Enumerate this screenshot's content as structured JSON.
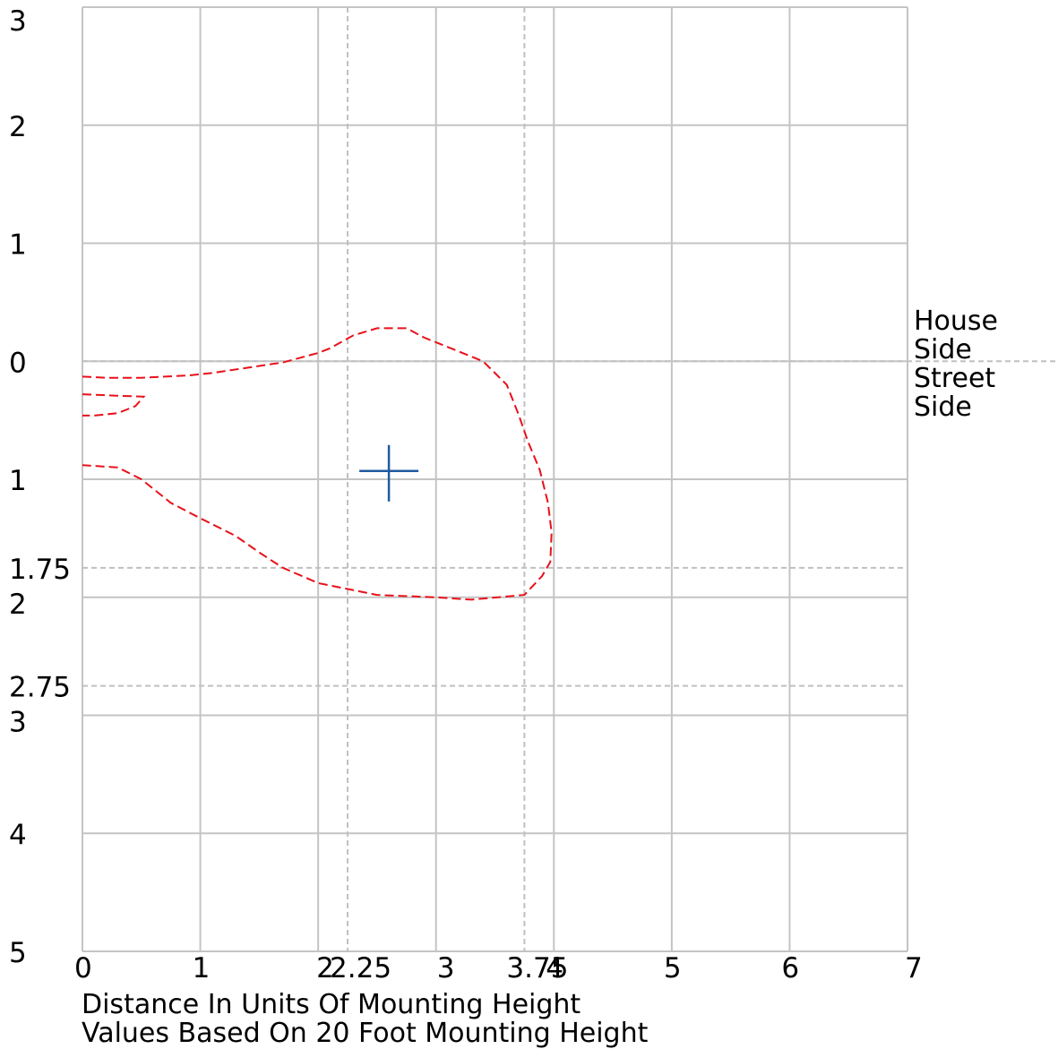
{
  "chart_data": {
    "type": "line",
    "title": "",
    "xlabel": "Distance In Units Of Mounting Height",
    "note": "Values Based On 20 Foot Mounting Height",
    "xlim": [
      0,
      7
    ],
    "ylim": [
      -3,
      5
    ],
    "x_ticks": [
      "0",
      "1",
      "2",
      "2.25",
      "3",
      "3.75",
      "4",
      "5",
      "6",
      "7"
    ],
    "y_ticks": [
      {
        "value": -3,
        "label": "3"
      },
      {
        "value": -2,
        "label": "2"
      },
      {
        "value": -1,
        "label": "1"
      },
      {
        "value": 0,
        "label": "0"
      },
      {
        "value": 1,
        "label": "1"
      },
      {
        "value": 1.75,
        "label": "1.75"
      },
      {
        "value": 2,
        "label": "2"
      },
      {
        "value": 2.75,
        "label": "2.75"
      },
      {
        "value": 3,
        "label": "3"
      },
      {
        "value": 4,
        "label": "4"
      },
      {
        "value": 5,
        "label": "5"
      }
    ],
    "x_grid": [
      0,
      1,
      2,
      3,
      4,
      5,
      6,
      7
    ],
    "y_grid": [
      -3,
      -2,
      -1,
      0,
      1,
      2,
      3,
      4,
      5
    ],
    "dashed_x": [
      2.25,
      3.75
    ],
    "dashed_y": [
      0,
      1.75,
      2.75
    ],
    "grid": true,
    "house_side_label": [
      "House",
      "Side"
    ],
    "street_side_label": [
      "Street",
      "Side"
    ],
    "marker": {
      "x": 2.6,
      "y": 0.93,
      "shape": "cross"
    },
    "series": [
      {
        "color": "#e8101a",
        "style": "dashed",
        "points": [
          [
            0,
            0.13
          ],
          [
            0.2,
            0.14
          ],
          [
            0.5,
            0.14
          ],
          [
            0.9,
            0.12
          ],
          [
            1.1,
            0.1
          ],
          [
            1.5,
            0.04
          ],
          [
            1.7,
            0.01
          ],
          [
            2.0,
            -0.07
          ],
          [
            2.1,
            -0.11
          ],
          [
            2.3,
            -0.22
          ],
          [
            2.5,
            -0.28
          ],
          [
            2.75,
            -0.28
          ],
          [
            2.9,
            -0.2
          ],
          [
            3.1,
            -0.12
          ],
          [
            3.4,
            0.0
          ],
          [
            3.6,
            0.2
          ],
          [
            3.7,
            0.45
          ],
          [
            3.78,
            0.68
          ],
          [
            3.88,
            0.92
          ],
          [
            3.95,
            1.2
          ],
          [
            3.98,
            1.45
          ],
          [
            3.97,
            1.7
          ],
          [
            3.9,
            1.82
          ],
          [
            3.75,
            1.98
          ],
          [
            3.3,
            2.02
          ],
          [
            3.0,
            2.0
          ],
          [
            2.5,
            1.98
          ],
          [
            2.25,
            1.93
          ],
          [
            2.0,
            1.88
          ],
          [
            1.7,
            1.75
          ],
          [
            1.5,
            1.62
          ],
          [
            1.3,
            1.48
          ],
          [
            1.0,
            1.33
          ],
          [
            0.75,
            1.2
          ],
          [
            0.5,
            1.0
          ],
          [
            0.3,
            0.9
          ],
          [
            0.0,
            0.88
          ]
        ]
      },
      {
        "color": "#e8101a",
        "style": "dashed",
        "points": [
          [
            0,
            0.28
          ],
          [
            0.25,
            0.29
          ],
          [
            0.52,
            0.3
          ],
          [
            0.45,
            0.38
          ],
          [
            0.3,
            0.44
          ],
          [
            0.1,
            0.46
          ],
          [
            0,
            0.46
          ]
        ]
      }
    ]
  }
}
